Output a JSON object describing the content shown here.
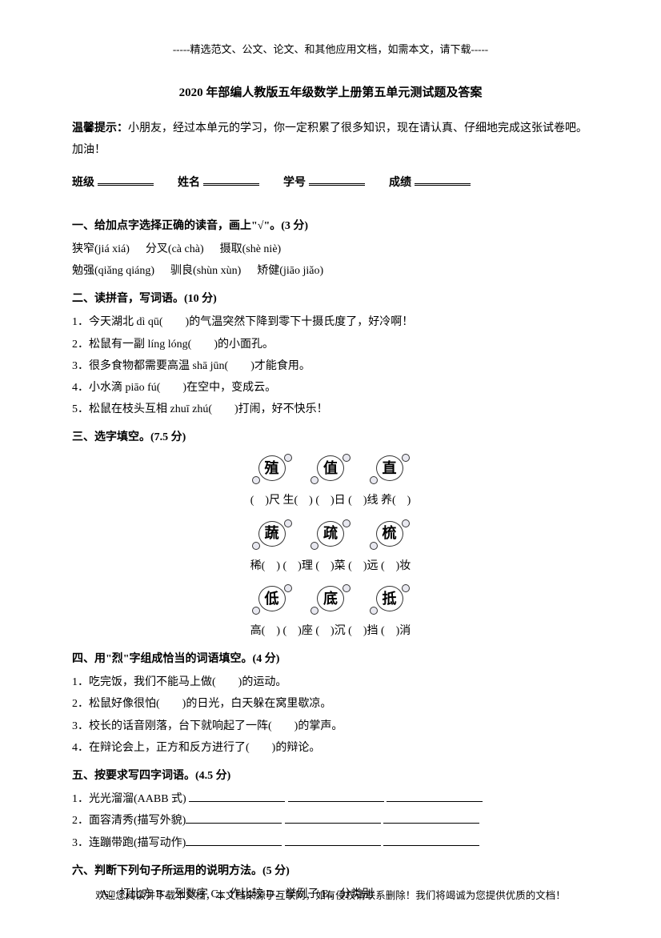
{
  "header": "-----精选范文、公文、论文、和其他应用文档，如需本文，请下载-----",
  "title": "2020 年部编人教版五年级数学上册第五单元测试题及答案",
  "tip_label": "温馨提示：",
  "tip_text": "小朋友，经过本单元的学习，你一定积累了很多知识，现在请认真、仔细地完成这张试卷吧。加油！",
  "info": {
    "class": "班级",
    "name": "姓名",
    "id": "学号",
    "score": "成绩"
  },
  "s1": {
    "title": "一、给加点字选择正确的读音，画上\"√\"。(3 分)",
    "row1": {
      "a": "狭窄(jiá xiá)",
      "b": "分叉(cà chà)",
      "c": "摄取(shè niè)"
    },
    "row2": {
      "a": "勉强(qiǎng qiáng)",
      "b": "驯良(shùn xùn)",
      "c": "矫健(jiāo jiǎo)"
    }
  },
  "s2": {
    "title": "二、读拼音，写词语。(10 分)",
    "q1": "1．今天湖北 dì qū(　　)的气温突然下降到零下十摄氏度了，好冷啊！",
    "q2": "2．松鼠有一副 líng lóng(　　)的小面孔。",
    "q3": "3．很多食物都需要高温 shā jūn(　　)才能食用。",
    "q4": "4．小水滴 piāo fú(　　)在空中，变成云。",
    "q5": "5．松鼠在枝头互相 zhuī zhú(　　)打闹，好不快乐！"
  },
  "s3": {
    "title": "三、选字填空。(7.5 分)",
    "row1": {
      "c1": "殖",
      "c2": "值",
      "c3": "直"
    },
    "fill1": "(　)尺  生(　)  (　)日  (　)线  养(　)",
    "row2": {
      "c1": "蔬",
      "c2": "疏",
      "c3": "梳"
    },
    "fill2": "稀(　)  (　)理  (　)菜  (　)远  (　)妆",
    "row3": {
      "c1": "低",
      "c2": "底",
      "c3": "抵"
    },
    "fill3": "高(　)  (　)座  (　)沉  (　)挡  (　)消"
  },
  "s4": {
    "title": "四、用\"烈\"字组成恰当的词语填空。(4 分)",
    "q1": "1．吃完饭，我们不能马上做(　　)的运动。",
    "q2": "2．松鼠好像很怕(　　)的日光，白天躲在窝里歇凉。",
    "q3": "3．校长的话音刚落，台下就响起了一阵(　　)的掌声。",
    "q4": "4．在辩论会上，正方和反方进行了(　　)的辩论。"
  },
  "s5": {
    "title": "五、按要求写四字词语。(4.5 分)",
    "q1": "1．光光溜溜(AABB 式) ",
    "q2": "2．面容清秀(描写外貌)",
    "q3": "3．连蹦带跑(描写动作)"
  },
  "s6": {
    "title": "六、判断下列句子所运用的说明方法。(5 分)",
    "opts": "A．打比方  B．列数字  C．作比较  D．举例子  E．分类别"
  },
  "footer": "欢迎您阅读并下载本文档，本文档来源于互联网，如有侵权请联系删除！我们将竭诚为您提供优质的文档！"
}
